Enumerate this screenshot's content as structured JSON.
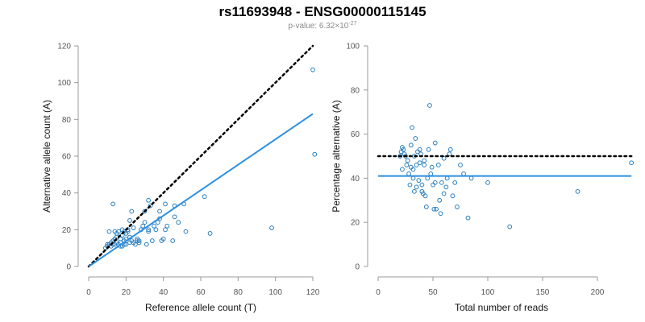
{
  "title": "rs11693948 - ENSG00000115145",
  "subtitle": "p-value: 6.32×10",
  "subtitle_exp": "-27",
  "colors": {
    "points": "#2a7fbf",
    "fit": "#2b8fe0",
    "reference": "#000000",
    "axis": "#9a9a9a"
  },
  "chart_data": [
    {
      "type": "scatter",
      "xlabel": "Reference allele count (T)",
      "ylabel": "Alternative allele count (A)",
      "xlim": [
        0,
        120
      ],
      "ylim": [
        0,
        120
      ],
      "xticks": [
        "0",
        "20",
        "40",
        "60",
        "80",
        "100",
        "120"
      ],
      "yticks": [
        "0",
        "20",
        "40",
        "60",
        "80",
        "100",
        "120"
      ],
      "grid": false,
      "points": [
        [
          10,
          11
        ],
        [
          10,
          12
        ],
        [
          11,
          12
        ],
        [
          12,
          11
        ],
        [
          12,
          13
        ],
        [
          11,
          19
        ],
        [
          13,
          12
        ],
        [
          13,
          14
        ],
        [
          14,
          12
        ],
        [
          14,
          15
        ],
        [
          14,
          19
        ],
        [
          15,
          13
        ],
        [
          15,
          16
        ],
        [
          16,
          12
        ],
        [
          16,
          19
        ],
        [
          17,
          11
        ],
        [
          17,
          13
        ],
        [
          17,
          15
        ],
        [
          18,
          17
        ],
        [
          18,
          20
        ],
        [
          19,
          12
        ],
        [
          19,
          14
        ],
        [
          19,
          19
        ],
        [
          20,
          12
        ],
        [
          20,
          15
        ],
        [
          20,
          18
        ],
        [
          21,
          19
        ],
        [
          21,
          20
        ],
        [
          22,
          13
        ],
        [
          22,
          16
        ],
        [
          22,
          25
        ],
        [
          23,
          14
        ],
        [
          23,
          30
        ],
        [
          24,
          13
        ],
        [
          25,
          12
        ],
        [
          26,
          14
        ],
        [
          26,
          15
        ],
        [
          27,
          14
        ],
        [
          28,
          20
        ],
        [
          29,
          22
        ],
        [
          30,
          24
        ],
        [
          30,
          30
        ],
        [
          31,
          12
        ],
        [
          32,
          19
        ],
        [
          32,
          20
        ],
        [
          32,
          36
        ],
        [
          33,
          33
        ],
        [
          34,
          14
        ],
        [
          35,
          22
        ],
        [
          36,
          20
        ],
        [
          37,
          24
        ],
        [
          38,
          26
        ],
        [
          38,
          30
        ],
        [
          39,
          14
        ],
        [
          40,
          15
        ],
        [
          41,
          34
        ],
        [
          41,
          20
        ],
        [
          42,
          22
        ],
        [
          45,
          14
        ],
        [
          46,
          33
        ],
        [
          46,
          27
        ],
        [
          48,
          24
        ],
        [
          51,
          34
        ],
        [
          52,
          19
        ],
        [
          62,
          38
        ],
        [
          65,
          18
        ],
        [
          98,
          21
        ],
        [
          120,
          107
        ],
        [
          121,
          61
        ],
        [
          13,
          34
        ],
        [
          9,
          10
        ],
        [
          15,
          18
        ],
        [
          18,
          11
        ],
        [
          24,
          21
        ],
        [
          27,
          13
        ]
      ],
      "fit_line": {
        "x": [
          0,
          120
        ],
        "y": [
          0,
          83
        ]
      },
      "reference_line": {
        "x": [
          0,
          120
        ],
        "y": [
          0,
          120
        ]
      }
    },
    {
      "type": "scatter",
      "xlabel": "Total number of reads",
      "ylabel": "Percentage alternative (A)",
      "xlim": [
        0,
        225
      ],
      "ylim": [
        0,
        100
      ],
      "xticks": [
        "0",
        "50",
        "100",
        "150",
        "200"
      ],
      "yticks": [
        "0",
        "20",
        "40",
        "60",
        "80",
        "100"
      ],
      "grid": false,
      "points": [
        [
          20,
          50
        ],
        [
          21,
          52
        ],
        [
          22,
          54
        ],
        [
          22,
          44
        ],
        [
          23,
          53
        ],
        [
          24,
          51
        ],
        [
          25,
          50
        ],
        [
          26,
          46
        ],
        [
          27,
          48
        ],
        [
          28,
          42
        ],
        [
          29,
          37
        ],
        [
          30,
          45
        ],
        [
          30,
          55
        ],
        [
          31,
          63
        ],
        [
          32,
          44
        ],
        [
          32,
          40
        ],
        [
          33,
          34
        ],
        [
          33,
          50
        ],
        [
          34,
          58
        ],
        [
          35,
          36
        ],
        [
          35,
          46
        ],
        [
          36,
          52
        ],
        [
          37,
          39
        ],
        [
          38,
          47
        ],
        [
          38,
          53
        ],
        [
          39,
          51
        ],
        [
          40,
          34
        ],
        [
          40,
          37
        ],
        [
          41,
          33
        ],
        [
          42,
          46
        ],
        [
          42,
          48
        ],
        [
          43,
          32
        ],
        [
          44,
          27
        ],
        [
          45,
          40
        ],
        [
          46,
          53
        ],
        [
          47,
          73
        ],
        [
          48,
          42
        ],
        [
          49,
          45
        ],
        [
          50,
          37
        ],
        [
          51,
          26
        ],
        [
          52,
          56
        ],
        [
          52,
          38
        ],
        [
          53,
          26
        ],
        [
          55,
          46
        ],
        [
          56,
          30
        ],
        [
          57,
          24
        ],
        [
          58,
          38
        ],
        [
          60,
          33
        ],
        [
          60,
          49
        ],
        [
          62,
          36
        ],
        [
          63,
          40
        ],
        [
          65,
          51
        ],
        [
          66,
          53
        ],
        [
          68,
          32
        ],
        [
          70,
          38
        ],
        [
          72,
          27
        ],
        [
          75,
          46
        ],
        [
          78,
          42
        ],
        [
          82,
          22
        ],
        [
          85,
          40
        ],
        [
          100,
          38
        ],
        [
          120,
          18
        ],
        [
          182,
          34
        ],
        [
          231,
          47
        ]
      ],
      "fit_line": {
        "x": [
          0,
          231
        ],
        "y": [
          41,
          41
        ]
      },
      "reference_line": {
        "x": [
          0,
          231
        ],
        "y": [
          50,
          50
        ]
      }
    }
  ]
}
